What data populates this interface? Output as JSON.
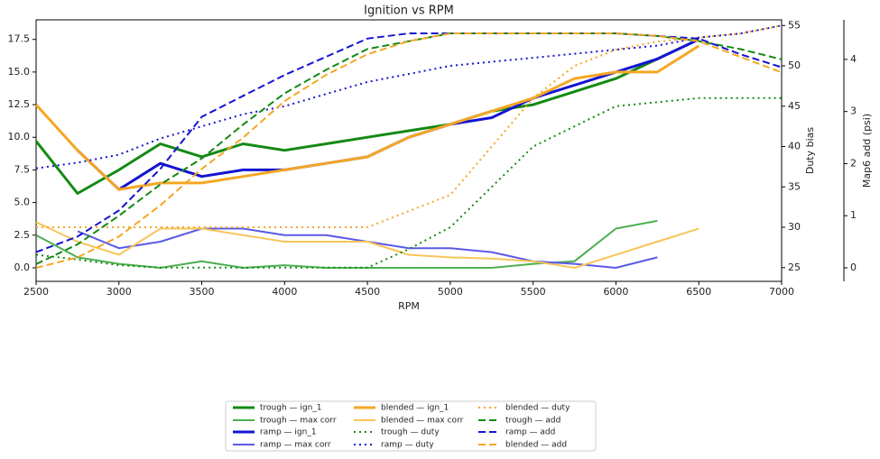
{
  "chart_data": {
    "type": "line",
    "title": "Ignition vs RPM",
    "x_label": "RPM",
    "y2_label": "Duty bias",
    "y3_label": "Map6 add (psi)",
    "x": [
      2500,
      2750,
      3000,
      3250,
      3500,
      3750,
      4000,
      4250,
      4500,
      4750,
      5000,
      5250,
      5500,
      5750,
      6000,
      6250,
      6500,
      6750,
      7000
    ],
    "xlim": [
      2500,
      7000
    ],
    "xticks": [
      2500,
      3000,
      3500,
      4000,
      4500,
      5000,
      5500,
      6000,
      6500,
      7000
    ],
    "ylim": [
      -1.04,
      19.0
    ],
    "yticks": [
      {
        "value": 0,
        "label": "0.0"
      },
      2.5,
      {
        "value": 5,
        "label": "5.0"
      },
      7.5,
      {
        "value": 10,
        "label": "10.0"
      },
      12.5,
      {
        "value": 15,
        "label": "15.0"
      },
      17.5
    ],
    "y2lim": [
      23.3,
      55.7
    ],
    "y2ticks": [
      25,
      30,
      35,
      40,
      45,
      50,
      55
    ],
    "y3lim": [
      -0.26,
      4.76
    ],
    "y3ticks": [
      0,
      1,
      2,
      3,
      4
    ],
    "series": [
      {
        "name": "trough — ign_1",
        "color": "#138a13",
        "style": "solid",
        "width": 3,
        "axis": "y",
        "values": [
          9.7,
          5.7,
          7.5,
          9.5,
          8.5,
          9.5,
          9.0,
          9.5,
          10.0,
          10.5,
          11.0,
          12.0,
          12.5,
          13.5,
          14.5,
          16.0,
          17.5,
          null,
          null
        ]
      },
      {
        "name": "trough — max corr",
        "color": "#4caf50",
        "style": "solid",
        "width": 2,
        "axis": "y",
        "values": [
          2.5,
          0.8,
          0.3,
          0.0,
          0.5,
          0.0,
          0.2,
          0.0,
          0.0,
          0.0,
          0.0,
          0.0,
          0.3,
          0.5,
          3.0,
          3.6,
          null,
          null,
          null
        ]
      },
      {
        "name": "ramp — ign_1",
        "color": "#1414d2",
        "style": "solid",
        "width": 3,
        "axis": "y",
        "values": [
          null,
          9.0,
          6.0,
          8.0,
          7.0,
          7.5,
          7.5,
          8.0,
          8.5,
          10.0,
          11.0,
          11.5,
          13.0,
          14.0,
          15.0,
          16.0,
          17.5,
          null,
          null
        ]
      },
      {
        "name": "ramp — max corr",
        "color": "#5a5ae6",
        "style": "solid",
        "width": 2,
        "axis": "y",
        "values": [
          null,
          2.8,
          1.5,
          2.0,
          3.0,
          3.0,
          2.5,
          2.5,
          2.0,
          1.5,
          1.5,
          1.2,
          0.5,
          0.3,
          0.0,
          0.8,
          null,
          null,
          null
        ]
      },
      {
        "name": "blended — ign_1",
        "color": "#f5a623",
        "style": "solid",
        "width": 3,
        "axis": "y",
        "values": [
          12.5,
          9.0,
          6.0,
          6.5,
          6.5,
          7.0,
          7.5,
          8.0,
          8.5,
          10.0,
          11.0,
          12.0,
          13.0,
          14.5,
          15.0,
          15.0,
          17.0,
          null,
          null
        ]
      },
      {
        "name": "blended — max corr",
        "color": "#f7c55a",
        "style": "solid",
        "width": 2,
        "axis": "y",
        "values": [
          3.5,
          2.0,
          1.0,
          3.0,
          3.0,
          2.5,
          2.0,
          2.0,
          2.0,
          1.0,
          0.8,
          0.7,
          0.5,
          0.0,
          1.0,
          2.0,
          3.0,
          null,
          null
        ]
      },
      {
        "name": "trough — duty",
        "color": "#138a13",
        "style": "dotted",
        "width": 2,
        "axis": "y2",
        "values": [
          26.6,
          26,
          25.3,
          25,
          25,
          25,
          25,
          25,
          25,
          27.3,
          30,
          35,
          40,
          42.5,
          45,
          45.5,
          46,
          46,
          46
        ]
      },
      {
        "name": "ramp — duty",
        "color": "#1414d2",
        "style": "dotted",
        "width": 2,
        "axis": "y2",
        "values": [
          37.3,
          38,
          39,
          41,
          42.5,
          44,
          45,
          46.5,
          48,
          49,
          50,
          50.5,
          51,
          51.5,
          52,
          52.5,
          53.5,
          54,
          55
        ]
      },
      {
        "name": "blended — duty",
        "color": "#f5a623",
        "style": "dotted",
        "width": 2,
        "axis": "y2",
        "values": [
          30,
          30,
          30,
          30,
          30,
          30,
          30,
          30,
          30,
          32,
          34,
          40,
          46,
          50,
          52,
          53,
          53.5,
          54,
          55
        ]
      },
      {
        "name": "trough — add",
        "color": "#138a13",
        "style": "dashed",
        "width": 2,
        "axis": "y3",
        "values": [
          0.07,
          0.45,
          1.0,
          1.6,
          2.1,
          2.75,
          3.35,
          3.8,
          4.2,
          4.35,
          4.5,
          4.5,
          4.5,
          4.5,
          4.5,
          4.45,
          4.35,
          4.2,
          4.0
        ]
      },
      {
        "name": "ramp — add",
        "color": "#1414d2",
        "style": "dashed",
        "width": 2,
        "axis": "y3",
        "values": [
          0.3,
          0.6,
          1.1,
          1.9,
          2.9,
          3.3,
          3.7,
          4.05,
          4.4,
          4.5,
          4.5,
          4.5,
          4.5,
          4.5,
          4.5,
          4.45,
          4.4,
          4.1,
          3.85
        ]
      },
      {
        "name": "blended — add",
        "color": "#f5a623",
        "style": "dashed",
        "width": 2,
        "axis": "y3",
        "values": [
          0.0,
          0.2,
          0.6,
          1.2,
          1.9,
          2.5,
          3.2,
          3.7,
          4.1,
          4.35,
          4.5,
          4.5,
          4.5,
          4.5,
          4.5,
          4.45,
          4.35,
          4.05,
          3.75
        ]
      }
    ]
  }
}
